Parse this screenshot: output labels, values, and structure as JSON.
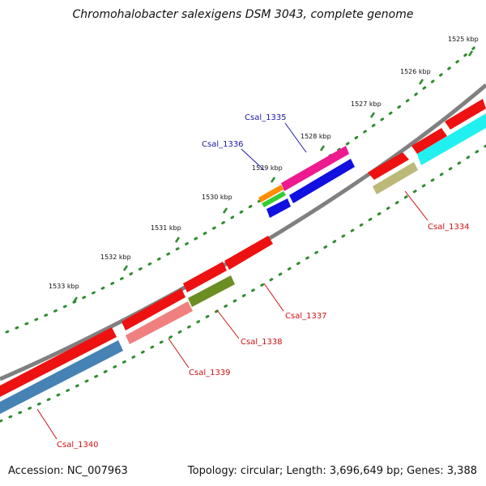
{
  "title": "Chromohalobacter salexigens DSM 3043, complete genome",
  "footer": {
    "accession": "Accession: NC_007963",
    "summary": "Topology: circular; Length: 3,696,649 bp; Genes: 3,388"
  },
  "ticks": [
    {
      "label": "1525 kbp"
    },
    {
      "label": "1526 kbp"
    },
    {
      "label": "1527 kbp"
    },
    {
      "label": "1528 kbp"
    },
    {
      "label": "1529 kbp"
    },
    {
      "label": "1530 kbp"
    },
    {
      "label": "1531 kbp"
    },
    {
      "label": "1532 kbp"
    },
    {
      "label": "1533 kbp"
    }
  ],
  "labels": [
    {
      "name": "Csal_1335",
      "color": "#1a1aa6"
    },
    {
      "name": "Csal_1336",
      "color": "#1a1aa6"
    },
    {
      "name": "Csal_1334",
      "color": "#cc1111"
    },
    {
      "name": "Csal_1337",
      "color": "#cc1111"
    },
    {
      "name": "Csal_1338",
      "color": "#cc1111"
    },
    {
      "name": "Csal_1339",
      "color": "#cc1111"
    },
    {
      "name": "Csal_1340",
      "color": "#cc1111"
    }
  ],
  "colors": {
    "backbone": "#808080",
    "tick": "#2e8b2e",
    "gene_red": "#ee1111",
    "gene_blue": "#1010e0",
    "gene_magenta": "#ee1a90",
    "gene_cyan": "#20f0f0",
    "gene_olive": "#bcb878",
    "gene_darkolive": "#6b8e23",
    "gene_pink": "#f08080",
    "gene_steel": "#4682b4",
    "gene_orange": "#ff8c00",
    "gene_green": "#33cc33"
  }
}
